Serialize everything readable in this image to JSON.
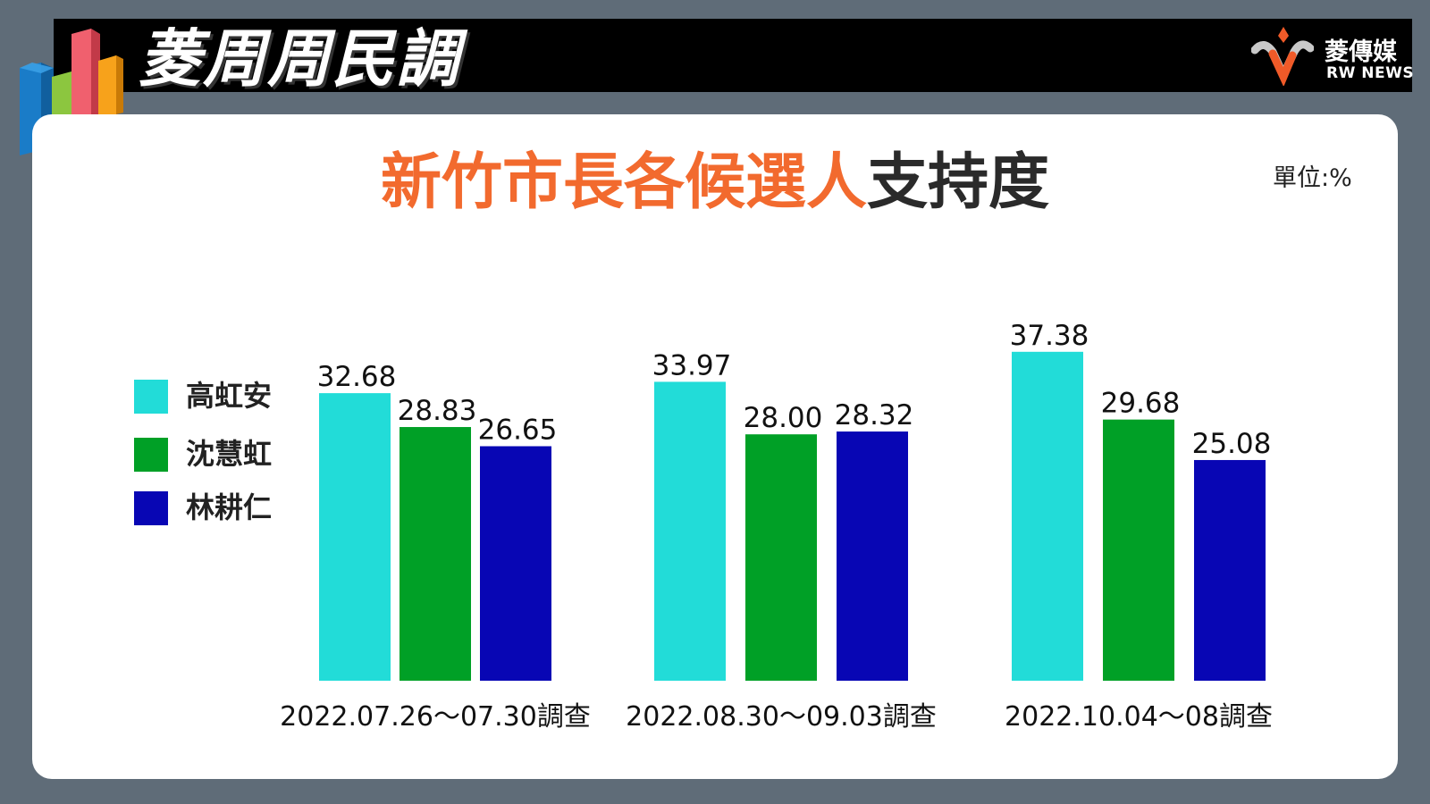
{
  "brand": {
    "title": "菱周周民調",
    "name": "菱傳媒",
    "subname": "RW NEWS"
  },
  "header": {
    "title_highlight": "新竹市長各候選人",
    "title_rest": "支持度",
    "unit": "單位:%"
  },
  "colors": {
    "accent": "#f26a2e",
    "series": [
      "#22dcd8",
      "#00a026",
      "#0806b4"
    ]
  },
  "chart_data": {
    "type": "bar",
    "title": "新竹市長各候選人支持度",
    "categories": [
      "2022.07.26～07.30調查",
      "2022.08.30～09.03調查",
      "2022.10.04～08調查"
    ],
    "series": [
      {
        "name": "高虹安",
        "values": [
          32.68,
          33.97,
          37.38
        ]
      },
      {
        "name": "沈慧虹",
        "values": [
          28.83,
          28.0,
          29.68
        ]
      },
      {
        "name": "林耕仁",
        "values": [
          26.65,
          28.32,
          25.08
        ]
      }
    ],
    "value_labels": [
      [
        "32.68",
        "33.97",
        "37.38"
      ],
      [
        "28.83",
        "28.00",
        "29.68"
      ],
      [
        "26.65",
        "28.32",
        "25.08"
      ]
    ],
    "ylim": [
      0,
      40
    ],
    "legend": "left",
    "grid": false
  }
}
